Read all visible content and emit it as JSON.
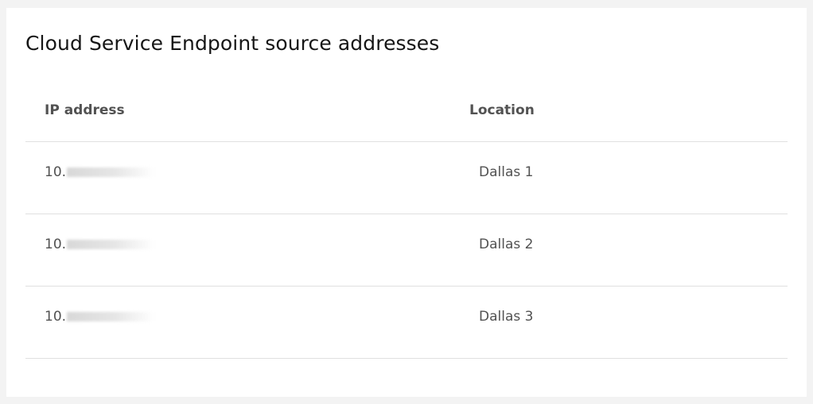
{
  "title": "Cloud Service Endpoint source addresses",
  "columns": {
    "ip": "IP address",
    "location": "Location"
  },
  "rows": [
    {
      "ip": "10.",
      "location": "Dallas 1"
    },
    {
      "ip": "10.",
      "location": "Dallas 2"
    },
    {
      "ip": "10.",
      "location": "Dallas 3"
    }
  ]
}
